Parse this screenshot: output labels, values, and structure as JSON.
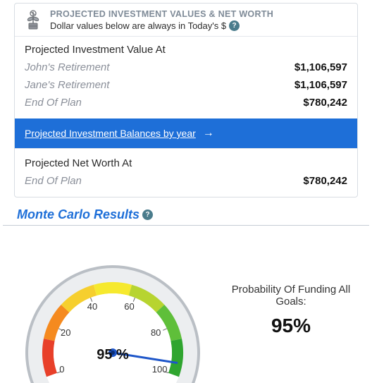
{
  "card": {
    "title": "PROJECTED INVESTMENT VALUES & NET WORTH",
    "subtitle": "Dollar values below are always in Today's $",
    "help_glyph": "?",
    "investment_heading": "Projected Investment Value At",
    "rows": [
      {
        "label": "John's Retirement",
        "value": "$1,106,597"
      },
      {
        "label": "Jane's Retirement",
        "value": "$1,106,597"
      },
      {
        "label": "End Of Plan",
        "value": "$780,242"
      }
    ],
    "balances_link": "Projected Investment Balances by year",
    "networth_heading": "Projected Net Worth At",
    "networth_row": {
      "label": "End Of Plan",
      "value": "$780,242"
    }
  },
  "monte": {
    "title": "Monte Carlo Results",
    "help_glyph": "?",
    "gauge": {
      "type": "gauge",
      "min": 0,
      "max": 100,
      "value": 95,
      "center_label": "95 %",
      "ticks": [
        "0",
        "20",
        "40",
        "60",
        "80",
        "100"
      ],
      "segment_colors": [
        "#e8402a",
        "#f58a1f",
        "#f6cf2e",
        "#f6e92e",
        "#b7d430",
        "#5fbf3a",
        "#2fa52f"
      ],
      "needle_color": "#1e56c9",
      "dial_highlight": "#eceef0",
      "dial_shadow": "#babfc5",
      "face_color": "#ffffff",
      "tick_font_size": 13
    },
    "probability": {
      "label": "Probability Of Funding All Goals:",
      "value": "95%"
    }
  }
}
